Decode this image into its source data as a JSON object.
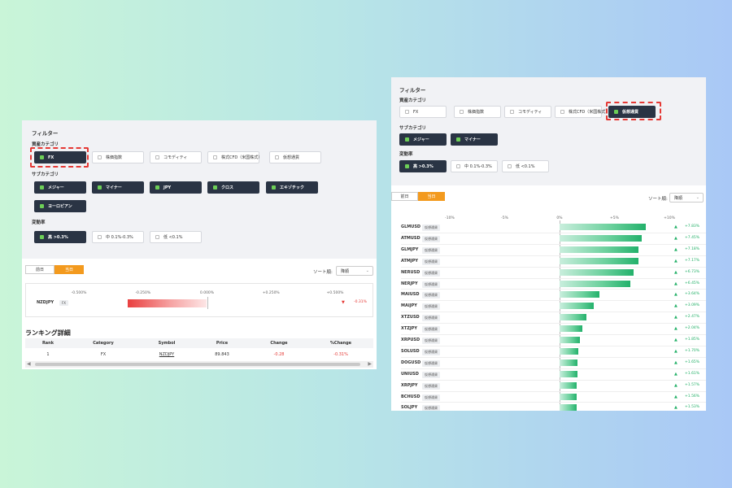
{
  "left": {
    "filter_title": "フィルター",
    "asset_label": "資産カテゴリ",
    "asset_chips": [
      {
        "label": "FX",
        "checked": true
      },
      {
        "label": "株価指数",
        "checked": false
      },
      {
        "label": "コモディティ",
        "checked": false
      },
      {
        "label": "株式CFD（米国株式）",
        "checked": false
      },
      {
        "label": "仮想通貨",
        "checked": false
      }
    ],
    "sub_label": "サブカテゴリ",
    "sub_chips": [
      {
        "label": "メジャー",
        "checked": true
      },
      {
        "label": "マイナー",
        "checked": true
      },
      {
        "label": "JPY",
        "checked": true
      },
      {
        "label": "クロス",
        "checked": true
      },
      {
        "label": "エキゾチック",
        "checked": true
      },
      {
        "label": "ヨーロピアン",
        "checked": true
      }
    ],
    "vol_label": "変動率",
    "vol_chips": [
      {
        "label": "高 >0.3%",
        "checked": true
      },
      {
        "label": "中 0.1%-0.3%",
        "checked": false
      },
      {
        "label": "低 <0.1%",
        "checked": false
      }
    ],
    "tabs": [
      {
        "label": "前日",
        "active": false
      },
      {
        "label": "当日",
        "active": true
      }
    ],
    "sort_label": "ソート順:",
    "sort_value": "降順",
    "axis_ticks": [
      {
        "label": "-0.500%",
        "value": -0.5
      },
      {
        "label": "-0.250%",
        "value": -0.25
      },
      {
        "label": "0.000%",
        "value": 0
      },
      {
        "label": "+0.250%",
        "value": 0.25
      },
      {
        "label": "+0.500%",
        "value": 0.5
      }
    ],
    "rows": [
      {
        "symbol": "NZDJPY",
        "badge": "FX",
        "pct_label": "-0.31%",
        "value": -0.31,
        "direction": "down"
      }
    ],
    "ranking_title": "ランキング詳細",
    "table_headers": [
      "Rank",
      "Category",
      "Symbol",
      "Price",
      "Change",
      "%Change"
    ],
    "table_rows": [
      [
        "1",
        "FX",
        "NZDJPY",
        "89.843",
        "-0.28",
        "-0.31%"
      ]
    ]
  },
  "right": {
    "filter_title": "フィルター",
    "asset_label": "資産カテゴリ",
    "asset_chips": [
      {
        "label": "FX",
        "checked": false
      },
      {
        "label": "株価指数",
        "checked": false
      },
      {
        "label": "コモディティ",
        "checked": false
      },
      {
        "label": "株式CFD（米国株式）",
        "checked": false
      },
      {
        "label": "仮想通貨",
        "checked": true
      }
    ],
    "sub_label": "サブカテゴリ",
    "sub_chips": [
      {
        "label": "メジャー",
        "checked": true
      },
      {
        "label": "マイナー",
        "checked": true
      }
    ],
    "vol_label": "変動率",
    "vol_chips": [
      {
        "label": "高 >0.3%",
        "checked": true
      },
      {
        "label": "中 0.1%-0.3%",
        "checked": false
      },
      {
        "label": "低 <0.1%",
        "checked": false
      }
    ],
    "tabs": [
      {
        "label": "前日",
        "active": false
      },
      {
        "label": "当日",
        "active": true
      }
    ],
    "sort_label": "ソート順:",
    "sort_value": "降順",
    "axis_ticks": [
      {
        "label": "-10%",
        "value": -10
      },
      {
        "label": "-5%",
        "value": -5
      },
      {
        "label": "0%",
        "value": 0
      },
      {
        "label": "+5%",
        "value": 5
      },
      {
        "label": "+10%",
        "value": 10
      }
    ],
    "rows": [
      {
        "symbol": "GLMUSD",
        "badge": "仮想通貨",
        "pct_label": "+7.83%",
        "value": 7.83,
        "direction": "up"
      },
      {
        "symbol": "ATMUSD",
        "badge": "仮想通貨",
        "pct_label": "+7.45%",
        "value": 7.45,
        "direction": "up"
      },
      {
        "symbol": "GLMJPY",
        "badge": "仮想通貨",
        "pct_label": "+7.18%",
        "value": 7.18,
        "direction": "up"
      },
      {
        "symbol": "ATMJPY",
        "badge": "仮想通貨",
        "pct_label": "+7.17%",
        "value": 7.17,
        "direction": "up"
      },
      {
        "symbol": "NERUSD",
        "badge": "仮想通貨",
        "pct_label": "+6.73%",
        "value": 6.73,
        "direction": "up"
      },
      {
        "symbol": "NERJPY",
        "badge": "仮想通貨",
        "pct_label": "+6.45%",
        "value": 6.45,
        "direction": "up"
      },
      {
        "symbol": "MAIUSD",
        "badge": "仮想通貨",
        "pct_label": "+3.64%",
        "value": 3.64,
        "direction": "up"
      },
      {
        "symbol": "MAIJPY",
        "badge": "仮想通貨",
        "pct_label": "+3.09%",
        "value": 3.09,
        "direction": "up"
      },
      {
        "symbol": "XTZUSD",
        "badge": "仮想通貨",
        "pct_label": "+2.47%",
        "value": 2.47,
        "direction": "up"
      },
      {
        "symbol": "XTZJPY",
        "badge": "仮想通貨",
        "pct_label": "+2.04%",
        "value": 2.04,
        "direction": "up"
      },
      {
        "symbol": "XRPUSD",
        "badge": "仮想通貨",
        "pct_label": "+1.85%",
        "value": 1.85,
        "direction": "up"
      },
      {
        "symbol": "SOLUSD",
        "badge": "仮想通貨",
        "pct_label": "+1.70%",
        "value": 1.7,
        "direction": "up"
      },
      {
        "symbol": "DOGUSD",
        "badge": "仮想通貨",
        "pct_label": "+1.65%",
        "value": 1.65,
        "direction": "up"
      },
      {
        "symbol": "UNIUSD",
        "badge": "仮想通貨",
        "pct_label": "+1.61%",
        "value": 1.61,
        "direction": "up"
      },
      {
        "symbol": "XRPJPY",
        "badge": "仮想通貨",
        "pct_label": "+1.57%",
        "value": 1.57,
        "direction": "up"
      },
      {
        "symbol": "BCHUSD",
        "badge": "仮想通貨",
        "pct_label": "+1.56%",
        "value": 1.56,
        "direction": "up"
      },
      {
        "symbol": "SOLJPY",
        "badge": "仮想通貨",
        "pct_label": "+1.53%",
        "value": 1.53,
        "direction": "up"
      }
    ]
  },
  "colors": {
    "chip_on": "#2a3444",
    "check_on": "#6dcf57",
    "highlight": "#e53935",
    "tab_active": "#f39a1e",
    "up": "#22b067",
    "down": "#e53935"
  }
}
